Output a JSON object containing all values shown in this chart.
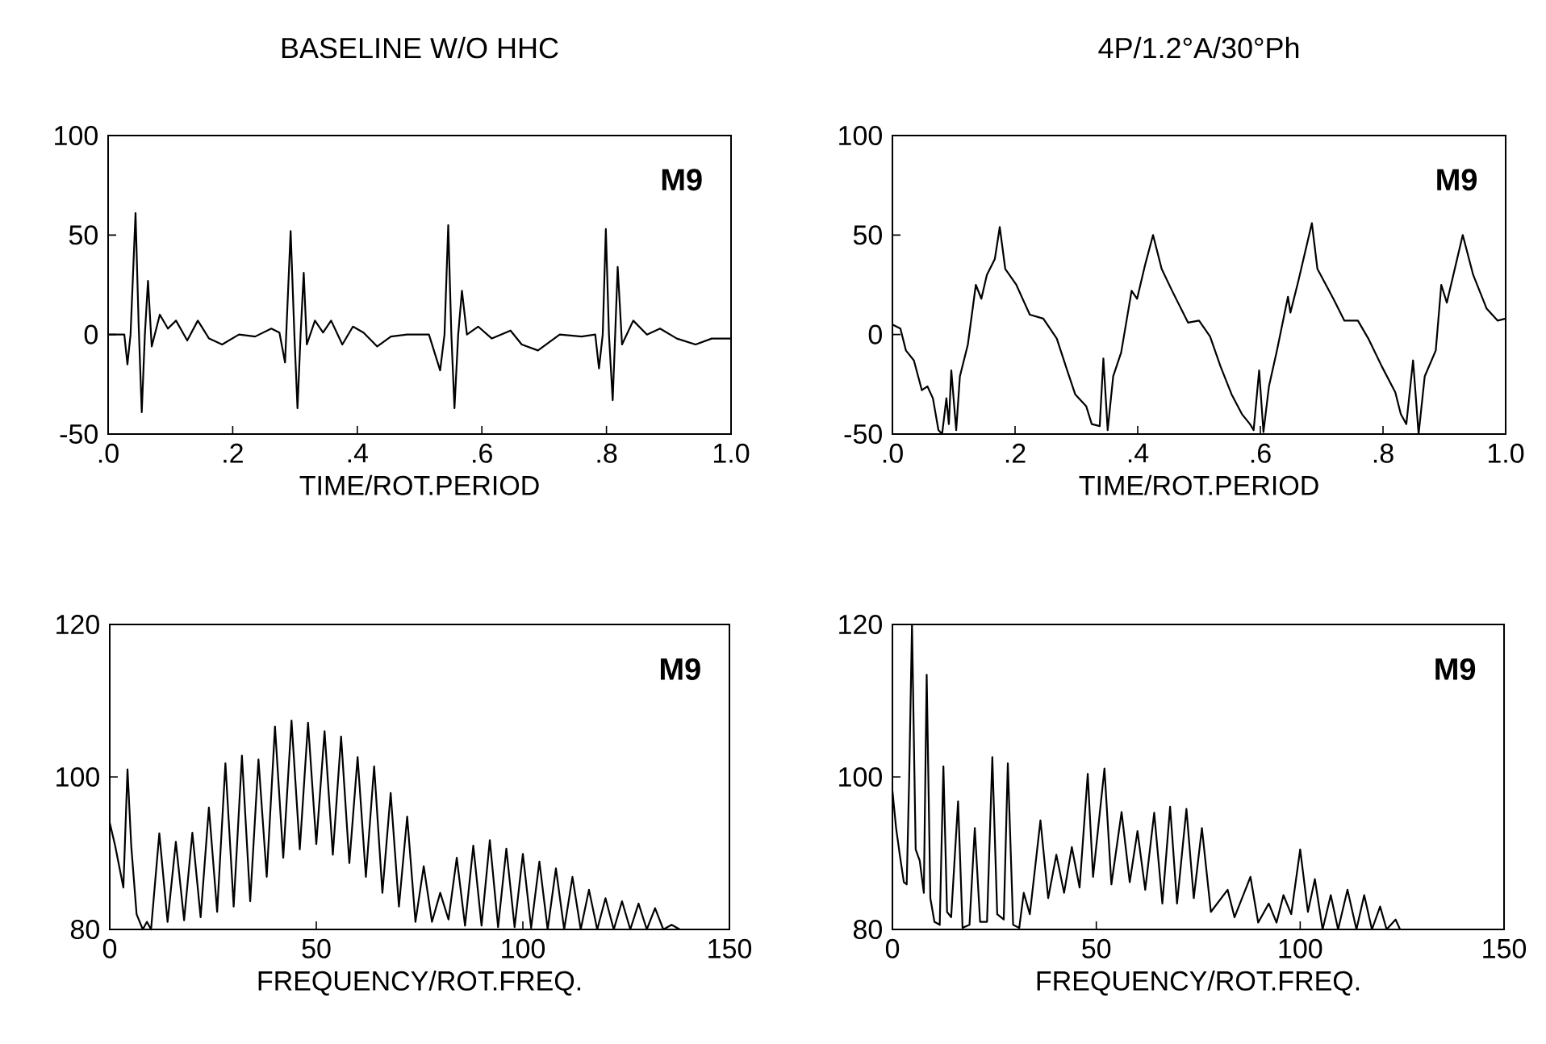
{
  "chart_data": [
    {
      "type": "line",
      "title": "BASELINE W/O HHC",
      "xlabel": "TIME/ROT.PERIOD",
      "annotations": [
        "M9"
      ],
      "color": "#000000",
      "xlim": [
        0,
        1
      ],
      "ylim": [
        -50,
        100
      ],
      "xticks": [
        {
          "value": 0,
          "label": ".0"
        },
        {
          "value": 0.2,
          "label": ".2"
        },
        {
          "value": 0.4,
          "label": ".4"
        },
        {
          "value": 0.6,
          "label": ".6"
        },
        {
          "value": 0.8,
          "label": ".8"
        },
        {
          "value": 1,
          "label": "1.0"
        }
      ],
      "yticks": [
        -50,
        0,
        50,
        100
      ],
      "x": [
        0,
        0.026,
        0.031,
        0.036,
        0.044,
        0.049,
        0.054,
        0.059,
        0.064,
        0.07,
        0.083,
        0.096,
        0.109,
        0.127,
        0.144,
        0.162,
        0.183,
        0.21,
        0.236,
        0.262,
        0.275,
        0.284,
        0.293,
        0.299,
        0.304,
        0.309,
        0.314,
        0.319,
        0.332,
        0.345,
        0.358,
        0.376,
        0.393,
        0.41,
        0.432,
        0.454,
        0.48,
        0.515,
        0.533,
        0.54,
        0.546,
        0.551,
        0.556,
        0.562,
        0.568,
        0.576,
        0.594,
        0.616,
        0.646,
        0.664,
        0.69,
        0.725,
        0.76,
        0.782,
        0.788,
        0.794,
        0.799,
        0.804,
        0.81,
        0.814,
        0.818,
        0.825,
        0.843,
        0.865,
        0.886,
        0.913,
        0.943,
        0.969,
        1.0
      ],
      "values": [
        0,
        0,
        -15,
        0,
        61,
        5,
        -39,
        0,
        27,
        -6,
        10,
        3,
        7,
        -3,
        7,
        -2,
        -5,
        0,
        -1,
        3,
        1,
        -14,
        52,
        0,
        -37,
        0,
        31,
        -5,
        7,
        1,
        7,
        -5,
        4,
        1,
        -6,
        -1,
        0,
        0,
        -18,
        0,
        55,
        0,
        -37,
        0,
        22,
        0,
        4,
        -2,
        2,
        -5,
        -8,
        0,
        -1,
        0,
        -17,
        0,
        53,
        0,
        -33,
        0,
        34,
        -5,
        7,
        0,
        3,
        -2,
        -5,
        -2,
        -2
      ]
    },
    {
      "type": "line",
      "title": "4P/1.2°A/30°Ph",
      "xlabel": "TIME/ROT.PERIOD",
      "annotations": [
        "M9"
      ],
      "color": "#000000",
      "xlim": [
        0,
        1
      ],
      "ylim": [
        -50,
        100
      ],
      "xticks": [
        {
          "value": 0,
          "label": ".0"
        },
        {
          "value": 0.2,
          "label": ".2"
        },
        {
          "value": 0.4,
          "label": ".4"
        },
        {
          "value": 0.6,
          "label": ".6"
        },
        {
          "value": 0.8,
          "label": ".8"
        },
        {
          "value": 1,
          "label": "1.0"
        }
      ],
      "yticks": [
        -50,
        0,
        50,
        100
      ],
      "x": [
        0,
        0.013,
        0.022,
        0.035,
        0.048,
        0.057,
        0.066,
        0.075,
        0.081,
        0.088,
        0.092,
        0.096,
        0.104,
        0.11,
        0.123,
        0.136,
        0.145,
        0.154,
        0.167,
        0.175,
        0.184,
        0.202,
        0.224,
        0.246,
        0.268,
        0.285,
        0.298,
        0.316,
        0.325,
        0.338,
        0.344,
        0.351,
        0.36,
        0.373,
        0.39,
        0.399,
        0.412,
        0.425,
        0.439,
        0.456,
        0.482,
        0.5,
        0.518,
        0.535,
        0.553,
        0.57,
        0.583,
        0.589,
        0.598,
        0.605,
        0.614,
        0.627,
        0.645,
        0.649,
        0.662,
        0.684,
        0.693,
        0.719,
        0.737,
        0.759,
        0.776,
        0.798,
        0.82,
        0.829,
        0.838,
        0.849,
        0.858,
        0.868,
        0.886,
        0.895,
        0.904,
        0.93,
        0.947,
        0.969,
        0.987,
        1.0
      ],
      "values": [
        5,
        3,
        -8,
        -13,
        -28,
        -26,
        -32,
        -48,
        -50,
        -32,
        -45,
        -18,
        -48,
        -21,
        -5,
        25,
        18,
        30,
        38,
        54,
        33,
        25,
        10,
        8,
        -2,
        -18,
        -30,
        -36,
        -45,
        -46,
        -12,
        -48,
        -21,
        -9,
        22,
        18,
        35,
        50,
        33,
        22,
        6,
        7,
        -1,
        -16,
        -30,
        -40,
        -45,
        -48,
        -18,
        -49,
        -26,
        -8,
        19,
        11,
        27,
        56,
        33,
        18,
        7,
        7,
        -2,
        -16,
        -29,
        -40,
        -45,
        -13,
        -50,
        -21,
        -8,
        25,
        16,
        50,
        30,
        13,
        7,
        8
      ]
    },
    {
      "type": "line",
      "xlabel": "FREQUENCY/ROT.FREQ.",
      "annotations": [
        "M9"
      ],
      "color": "#000000",
      "xlim": [
        0,
        150
      ],
      "ylim": [
        80,
        120
      ],
      "xticks": [
        0,
        50,
        100,
        150
      ],
      "yticks": [
        80,
        100,
        120
      ],
      "x": [
        0,
        1.3,
        3.3,
        4.3,
        5.2,
        6.5,
        8,
        9,
        10,
        12,
        14,
        16,
        18,
        20,
        22,
        24,
        26,
        28,
        30,
        32,
        34,
        36,
        38,
        40,
        42,
        44,
        46,
        48,
        50,
        52,
        54,
        56,
        58,
        60,
        62,
        64,
        66,
        68,
        70,
        72,
        74,
        76,
        78,
        80,
        82,
        84,
        86,
        88,
        90,
        92,
        94,
        96,
        98,
        100,
        102,
        104,
        106,
        108,
        110,
        112,
        114,
        116,
        118,
        120,
        122,
        124,
        126,
        128,
        130,
        132,
        134,
        136,
        138
      ],
      "values": [
        94,
        91,
        85.5,
        101,
        91,
        82,
        80,
        81,
        80,
        92.6,
        81,
        91.5,
        81.2,
        92.7,
        81.6,
        96,
        82.3,
        101.8,
        83,
        102.8,
        83.7,
        102.3,
        86.9,
        106.6,
        89.4,
        107.4,
        90.5,
        107.1,
        91.2,
        106,
        89.8,
        105.3,
        88.7,
        102.6,
        86.9,
        101.4,
        84.8,
        97.9,
        83,
        94.8,
        81,
        88.3,
        81,
        84.8,
        81.3,
        89.4,
        80.5,
        91,
        80.5,
        91.7,
        80.3,
        90.6,
        80.3,
        89.9,
        80.2,
        88.9,
        80,
        88,
        80,
        86.9,
        80,
        85.2,
        80,
        84.1,
        80,
        83.7,
        80,
        83.4,
        80,
        82.8,
        80,
        80.6,
        80
      ]
    },
    {
      "type": "line",
      "xlabel": "FREQUENCY/ROT.FREQ.",
      "annotations": [
        "M9"
      ],
      "color": "#000000",
      "xlim": [
        0,
        150
      ],
      "ylim": [
        80,
        120
      ],
      "xticks": [
        0,
        50,
        100,
        150
      ],
      "yticks": [
        80,
        100,
        120
      ],
      "x": [
        0,
        0.9,
        1.8,
        2.8,
        3.5,
        4.1,
        4.8,
        5.7,
        6.7,
        7.7,
        8.4,
        9.3,
        10.3,
        11.6,
        12.5,
        13.4,
        14.4,
        16.1,
        17.2,
        18.9,
        20.2,
        21.5,
        23.2,
        24.5,
        25.7,
        27.3,
        28.3,
        29.6,
        31.1,
        32.2,
        33.7,
        36.3,
        38.2,
        40.2,
        42.1,
        44,
        45.9,
        47.9,
        49.2,
        52,
        53.7,
        56.2,
        58.2,
        60.1,
        62,
        64.2,
        66.2,
        68.1,
        69.8,
        72.1,
        73.9,
        75.9,
        78.1,
        82.2,
        83.9,
        87.8,
        89.7,
        92.3,
        94.2,
        95.9,
        97.8,
        100,
        101.9,
        103.6,
        105.5,
        107.5,
        109.3,
        111.6,
        113.8,
        115.7,
        117.6,
        119.6,
        121.2,
        123.4,
        124.5
      ],
      "values": [
        98.2,
        93.3,
        89.8,
        86.2,
        85.9,
        99.6,
        120,
        90.5,
        89,
        84.8,
        113.4,
        84.1,
        81,
        80.6,
        101.4,
        82.3,
        81.6,
        96.8,
        80.2,
        80.6,
        93.3,
        81,
        81,
        102.6,
        82,
        81.3,
        101.8,
        80.6,
        80.2,
        84.8,
        82,
        94.3,
        84.1,
        89.8,
        84.8,
        90.8,
        85.5,
        100.4,
        86.9,
        101.1,
        85.9,
        95.4,
        86.2,
        92.9,
        85.2,
        95.3,
        83.4,
        96.1,
        83.4,
        95.8,
        84.1,
        93.3,
        82.3,
        85.2,
        81.6,
        86.9,
        80.9,
        83.4,
        80.9,
        84.5,
        82,
        90.5,
        82.3,
        86.6,
        80,
        84.5,
        80,
        85.2,
        80,
        84.5,
        80,
        83,
        80,
        81.3,
        80
      ]
    }
  ]
}
